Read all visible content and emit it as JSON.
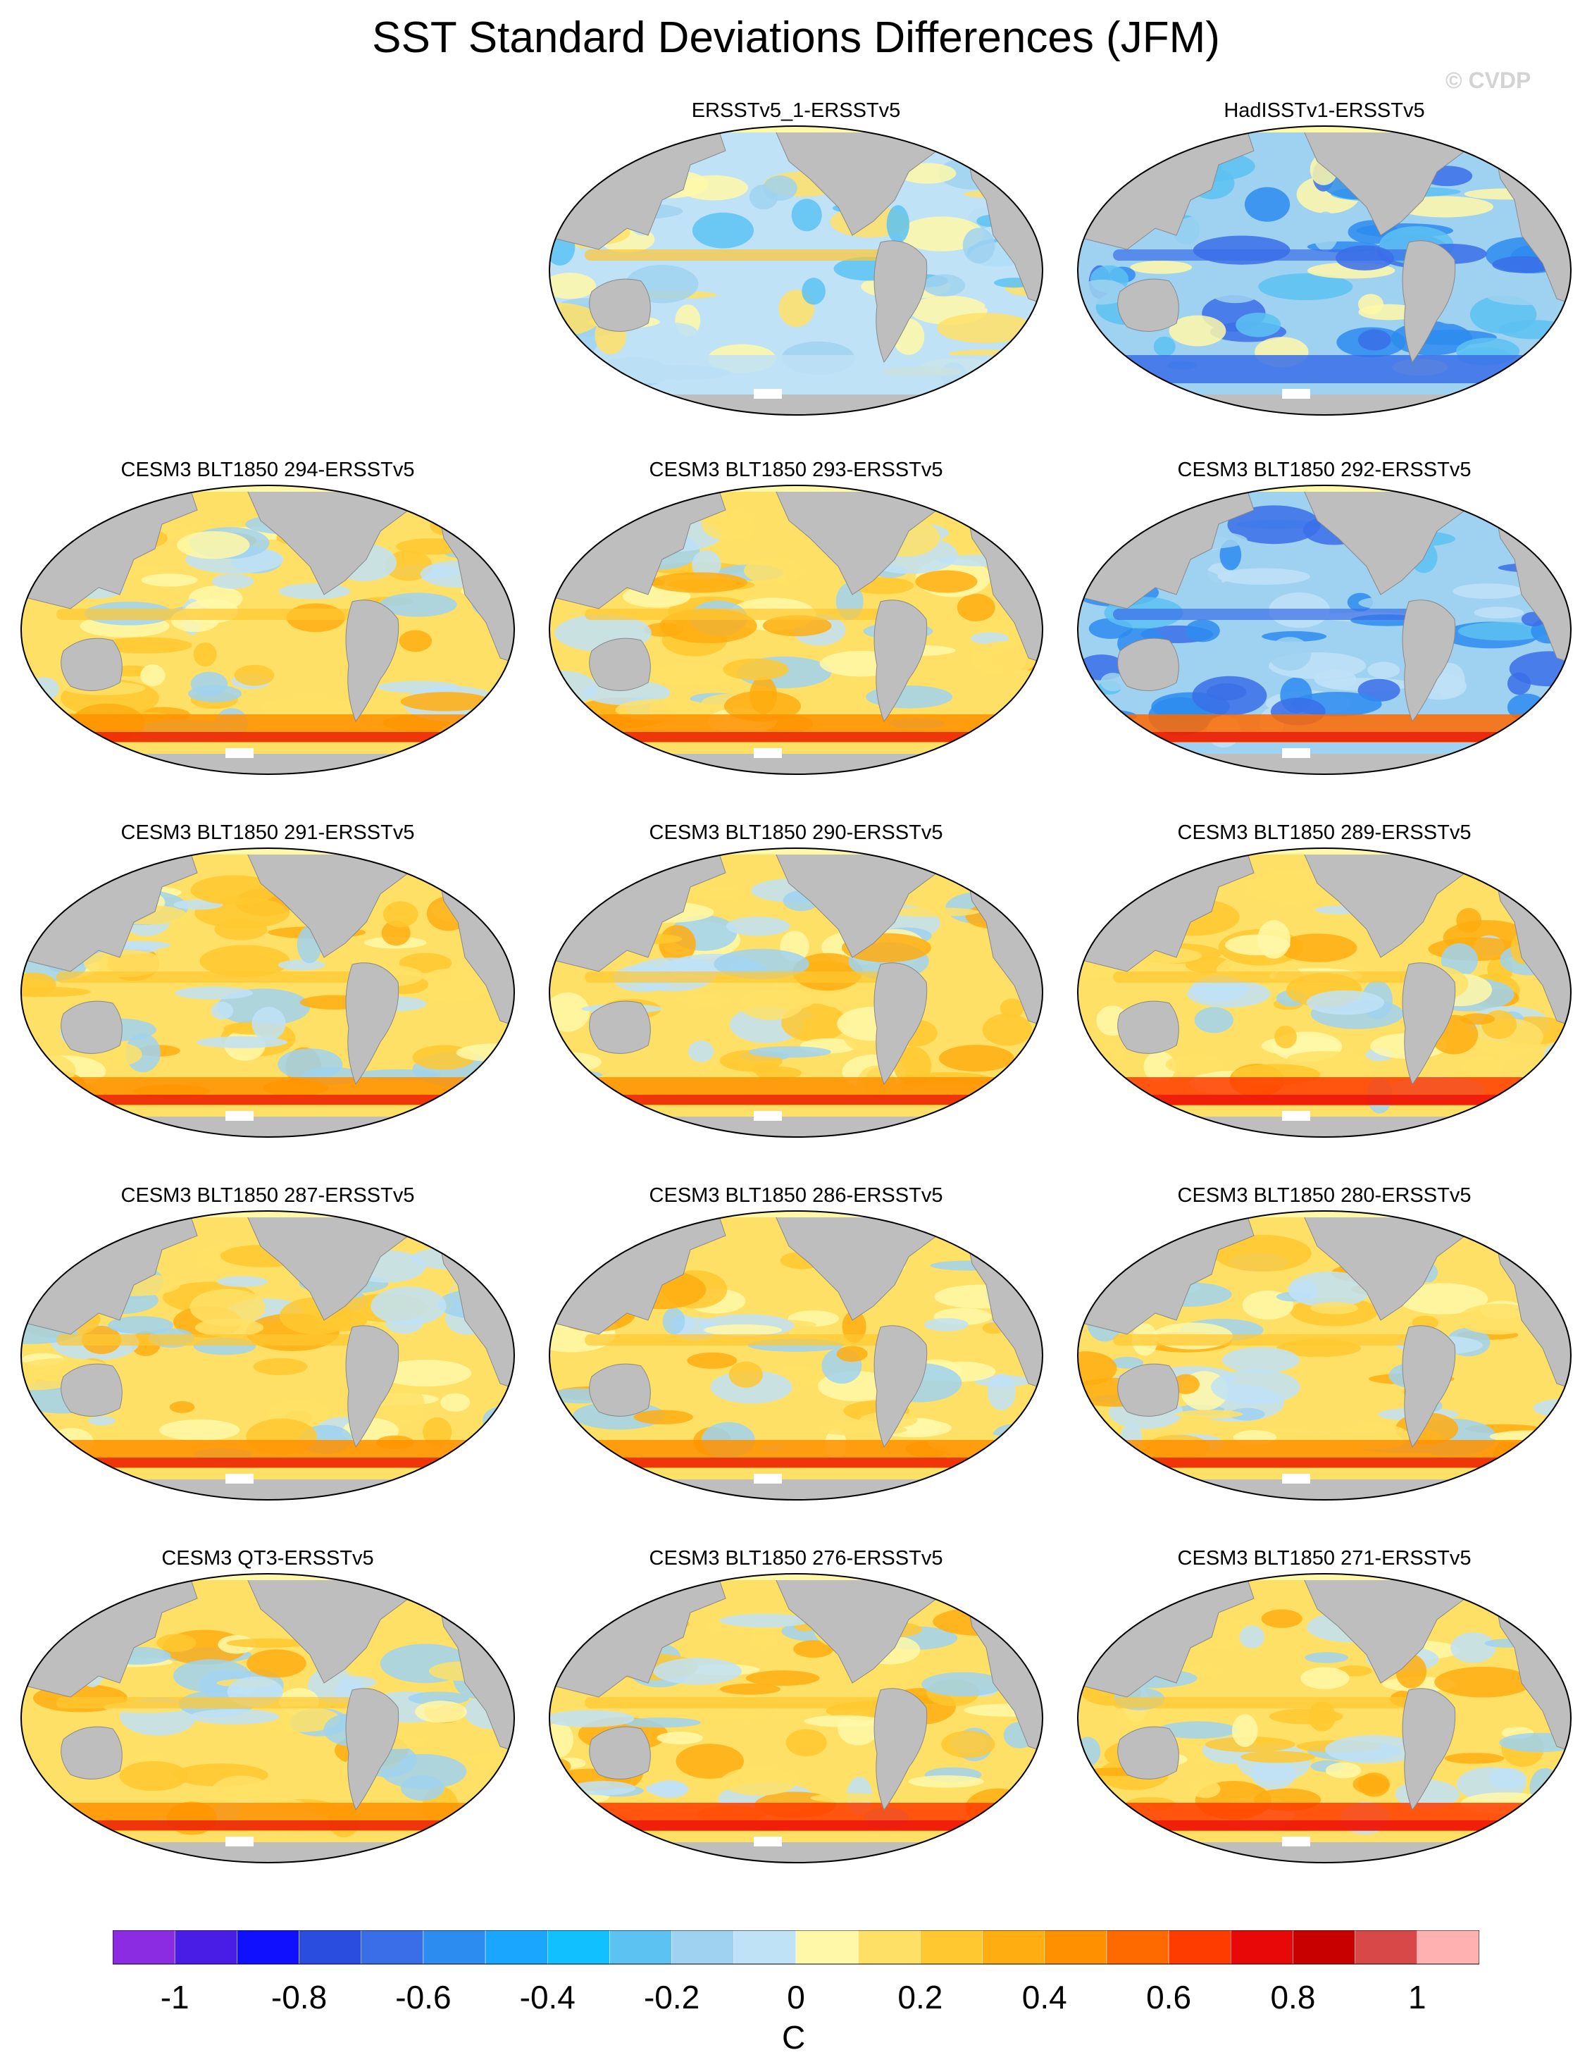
{
  "title": "SST Standard Deviations Differences (JFM)",
  "watermark": "© CVDP",
  "panels": [
    {
      "label": "ERSSTv5_1-ERSSTv5",
      "pattern": "weak"
    },
    {
      "label": "HadISSTv1-ERSSTv5",
      "pattern": "negative"
    },
    {
      "label": "CESM3 BLT1850 294-ERSSTv5",
      "pattern": "positive"
    },
    {
      "label": "CESM3 BLT1850 293-ERSSTv5",
      "pattern": "positive"
    },
    {
      "label": "CESM3 BLT1850 292-ERSSTv5",
      "pattern": "mixed"
    },
    {
      "label": "CESM3 BLT1850 291-ERSSTv5",
      "pattern": "positive"
    },
    {
      "label": "CESM3 BLT1850 290-ERSSTv5",
      "pattern": "positive"
    },
    {
      "label": "CESM3 BLT1850 289-ERSSTv5",
      "pattern": "strong"
    },
    {
      "label": "CESM3 BLT1850 287-ERSSTv5",
      "pattern": "positive"
    },
    {
      "label": "CESM3 BLT1850 286-ERSSTv5",
      "pattern": "positive"
    },
    {
      "label": "CESM3 BLT1850 280-ERSSTv5",
      "pattern": "positive"
    },
    {
      "label": "CESM3 QT3-ERSSTv5",
      "pattern": "positive"
    },
    {
      "label": "CESM3 BLT1850 276-ERSSTv5",
      "pattern": "strong"
    },
    {
      "label": "CESM3 BLT1850 271-ERSSTv5",
      "pattern": "strong"
    }
  ],
  "colorbar": {
    "colors": [
      "#8b2be2",
      "#4a1de6",
      "#1010ff",
      "#2a4de0",
      "#3a6ee8",
      "#2d8cf0",
      "#1aa5ff",
      "#10c0ff",
      "#5cc2f2",
      "#9fd2f0",
      "#bfe2f7",
      "#fff8a8",
      "#ffe066",
      "#ffc830",
      "#ffad10",
      "#ff9000",
      "#ff6a00",
      "#ff3c00",
      "#e80808",
      "#c80000",
      "#d84848",
      "#ffb0b0"
    ],
    "tick_labels": [
      "-1",
      "-0.8",
      "-0.6",
      "-0.4",
      "-0.2",
      "0",
      "0.2",
      "0.4",
      "0.6",
      "0.8",
      "1"
    ],
    "unit": "C"
  },
  "land_color": "#bebebe",
  "ice_color": "#fff8a8"
}
